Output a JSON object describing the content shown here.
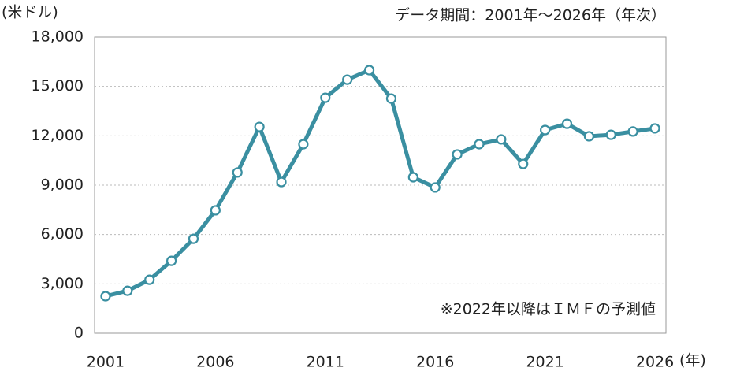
{
  "chart_data": {
    "type": "line",
    "y_label": "(米ドル)",
    "subtitle": "データ期間：2001年～2026年（年次）",
    "x_label": "(年)",
    "annotation": "※2022年以降はＩＭＦの予測値",
    "x": [
      2001,
      2002,
      2003,
      2004,
      2005,
      2006,
      2007,
      2008,
      2009,
      2010,
      2011,
      2012,
      2013,
      2014,
      2015,
      2016,
      2017,
      2018,
      2019,
      2020,
      2021,
      2022,
      2023,
      2024,
      2025,
      2026
    ],
    "series": [
      {
        "color": "#3a8fa1",
        "values": [
          2250,
          2580,
          3250,
          4400,
          5740,
          7470,
          9770,
          12540,
          9190,
          11490,
          14310,
          15410,
          15990,
          14260,
          9480,
          8860,
          10870,
          11490,
          11780,
          10290,
          12350,
          12730,
          11970,
          12060,
          12260,
          12450
        ]
      }
    ],
    "xlim": [
      2000.5,
      2026.5
    ],
    "xticks": [
      2001,
      2006,
      2011,
      2016,
      2021,
      2026
    ],
    "ylim": [
      0,
      18000
    ],
    "yticks": [
      0,
      {
        "value": 3000,
        "label": "3,000"
      },
      {
        "value": 6000,
        "label": "6,000"
      },
      {
        "value": 9000,
        "label": "9,000"
      },
      {
        "value": 12000,
        "label": "12,000"
      },
      {
        "value": 15000,
        "label": "15,000"
      },
      {
        "value": 18000,
        "label": "18,000"
      }
    ],
    "grid": true
  }
}
